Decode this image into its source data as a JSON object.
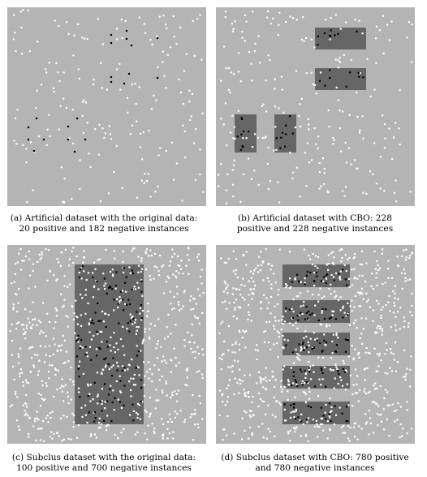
{
  "colors": {
    "background": "#b4b4b4",
    "region": "#666666",
    "negative_point": "#ffffff",
    "positive_point": "#000000"
  },
  "panels": [
    {
      "id": "a",
      "caption_lines": [
        "(a) Artificial dataset with the original data:",
        "20 positive and 182 negative instances"
      ]
    },
    {
      "id": "b",
      "caption_lines": [
        "(b) Artificial dataset with CBO: 228",
        "positive and 228 negative instances"
      ]
    },
    {
      "id": "c",
      "caption_lines": [
        "(c) Subclus dataset with the original data:",
        "100 positive and 700 negative instances"
      ]
    },
    {
      "id": "d",
      "caption_lines": [
        "(d) Subclus dataset with CBO: 780 positive",
        "and 780 negative instances"
      ]
    }
  ]
}
